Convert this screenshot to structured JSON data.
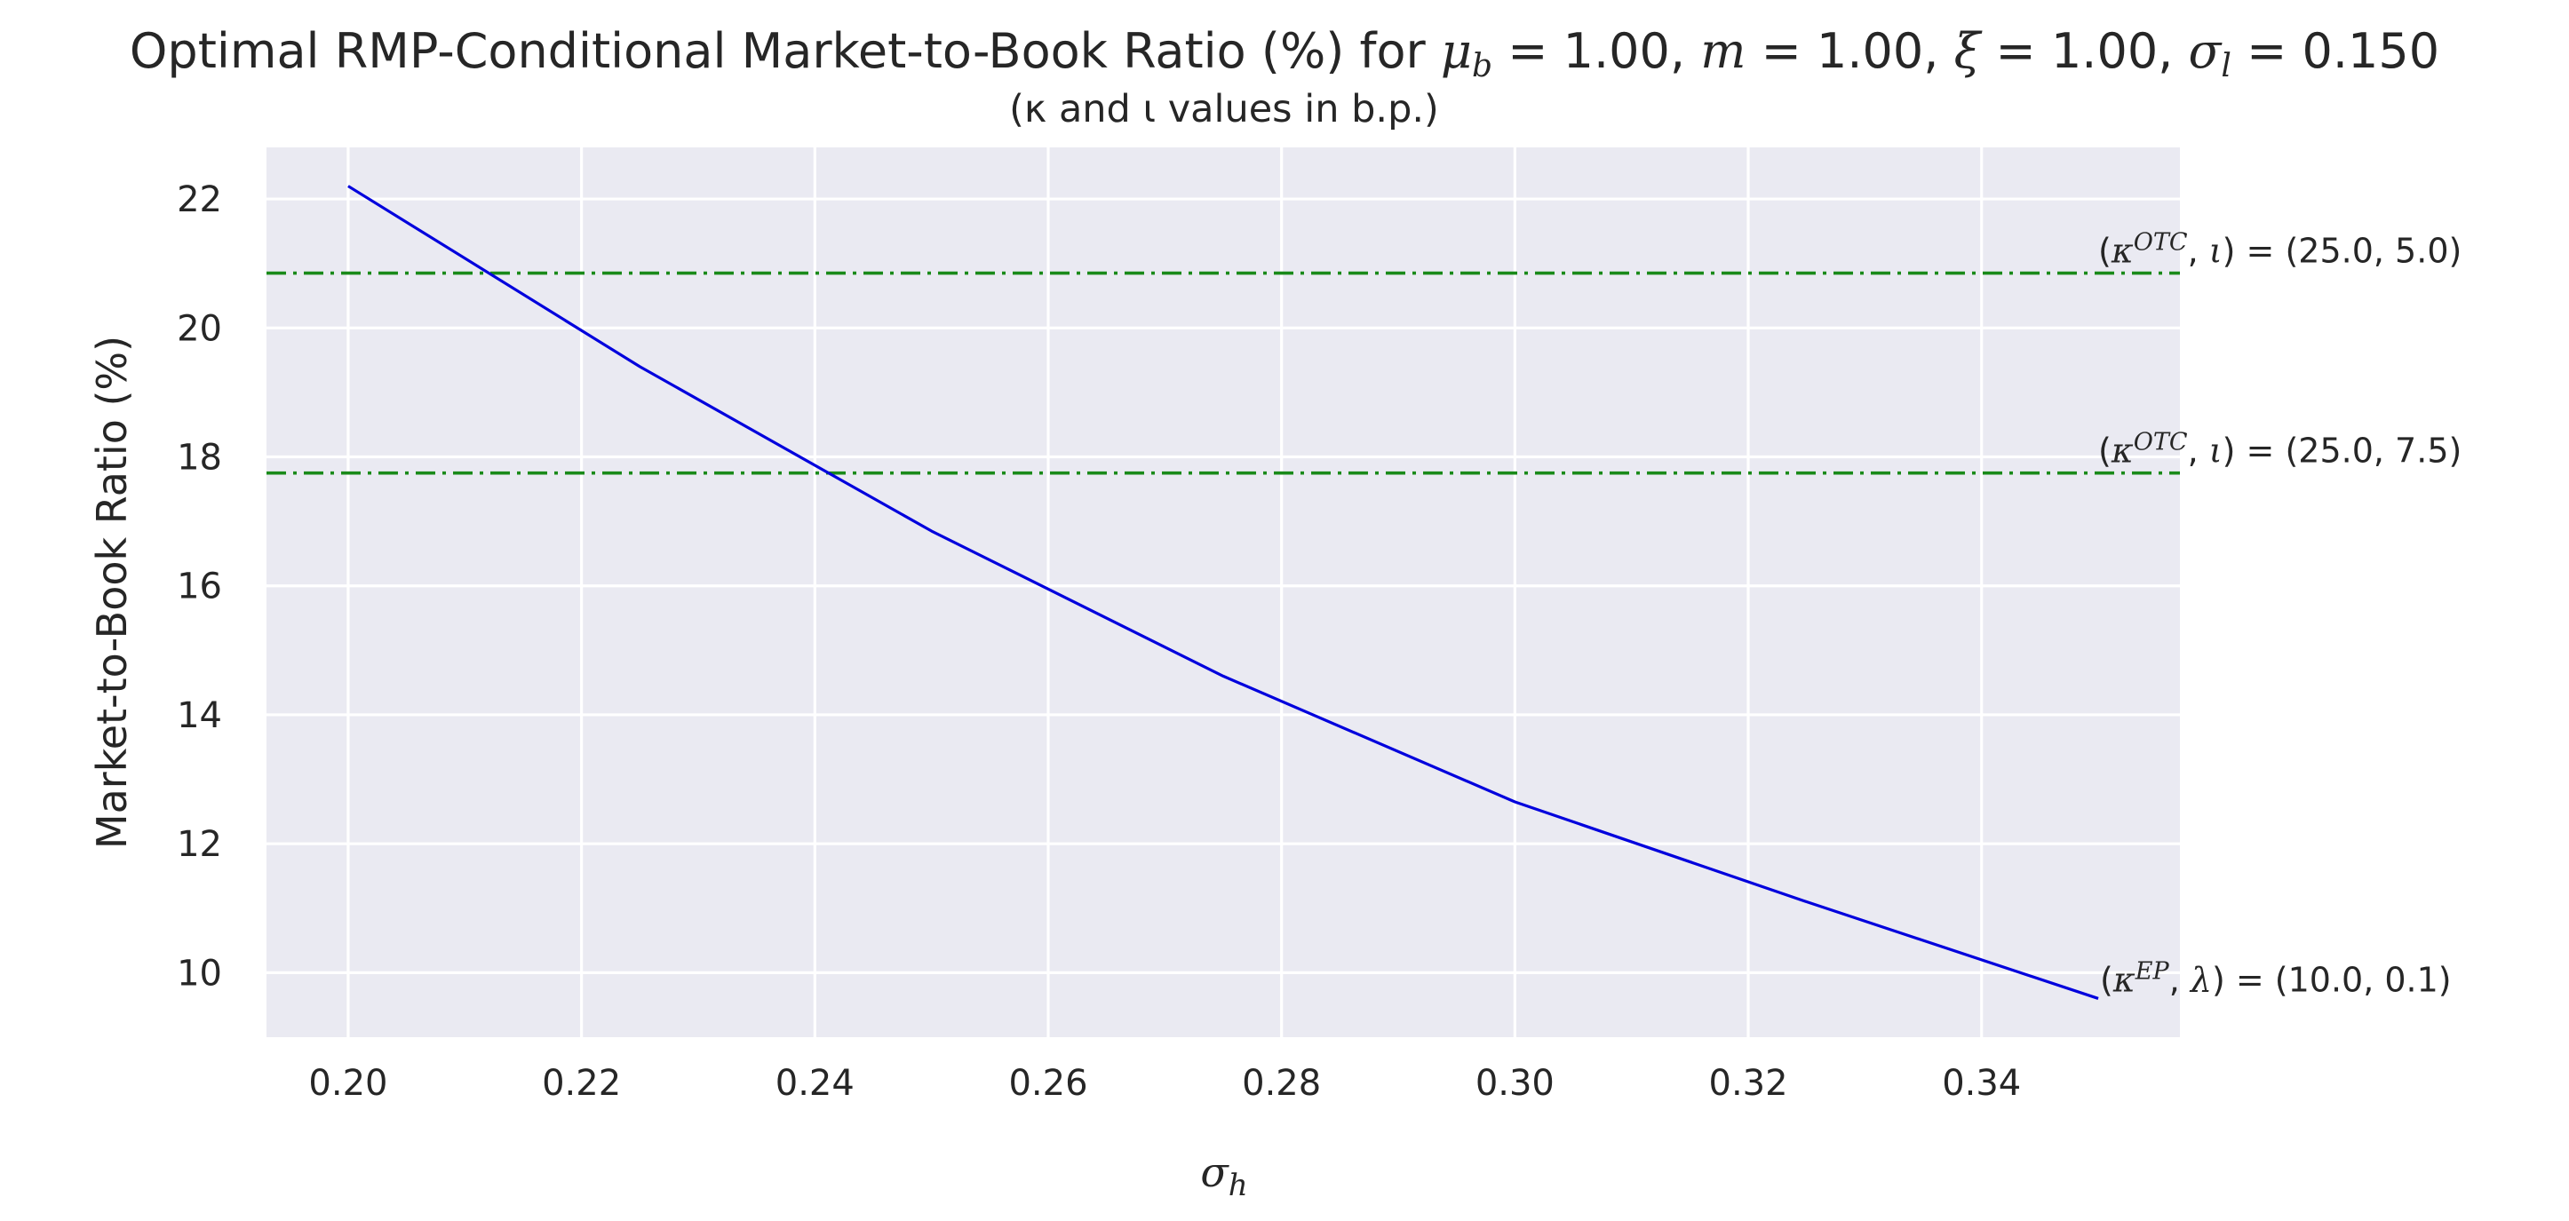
{
  "chart_data": {
    "type": "line",
    "title": "Optimal RMP-Conditional Market-to-Book Ratio (%) for μ_b = 1.00, m = 1.00, ξ = 1.00, σ_l = 0.150",
    "title_parts": {
      "prefix": "Optimal RMP-Conditional Market-to-Book Ratio (%) for ",
      "mu_b": "1.00",
      "m": "1.00",
      "xi": "1.00",
      "sigma_l": "0.150"
    },
    "subtitle": "(κ and ι values in b.p.)",
    "xlabel": "σ_h",
    "ylabel": "Market-to-Book Ratio (%)",
    "xlim": [
      0.193,
      0.357
    ],
    "ylim": [
      9.0,
      22.8
    ],
    "xticks": [
      "0.20",
      "0.22",
      "0.24",
      "0.26",
      "0.28",
      "0.30",
      "0.32",
      "0.34"
    ],
    "yticks": [
      "10",
      "12",
      "14",
      "16",
      "18",
      "20",
      "22"
    ],
    "grid": true,
    "series": [
      {
        "color": "#0000dd",
        "style": "solid",
        "x": [
          0.2,
          0.225,
          0.25,
          0.275,
          0.3,
          0.325,
          0.35
        ],
        "y": [
          22.2,
          19.4,
          16.85,
          14.6,
          12.65,
          11.1,
          9.6
        ]
      }
    ],
    "reference_lines": [
      {
        "y": 20.85,
        "color": "#1a8a1a",
        "style": "dashdot",
        "label_kappa": "OTC",
        "label_second": "ι",
        "label_value": "(25.0, 5.0)"
      },
      {
        "y": 17.75,
        "color": "#1a8a1a",
        "style": "dashdot",
        "label_kappa": "OTC",
        "label_second": "ι",
        "label_value": "(25.0, 7.5)"
      }
    ],
    "series_annotation": {
      "label_kappa": "EP",
      "label_second": "λ",
      "label_value": "(10.0, 0.1)"
    }
  },
  "colors": {
    "plot_background": "#eaeaf2",
    "grid": "#ffffff"
  }
}
